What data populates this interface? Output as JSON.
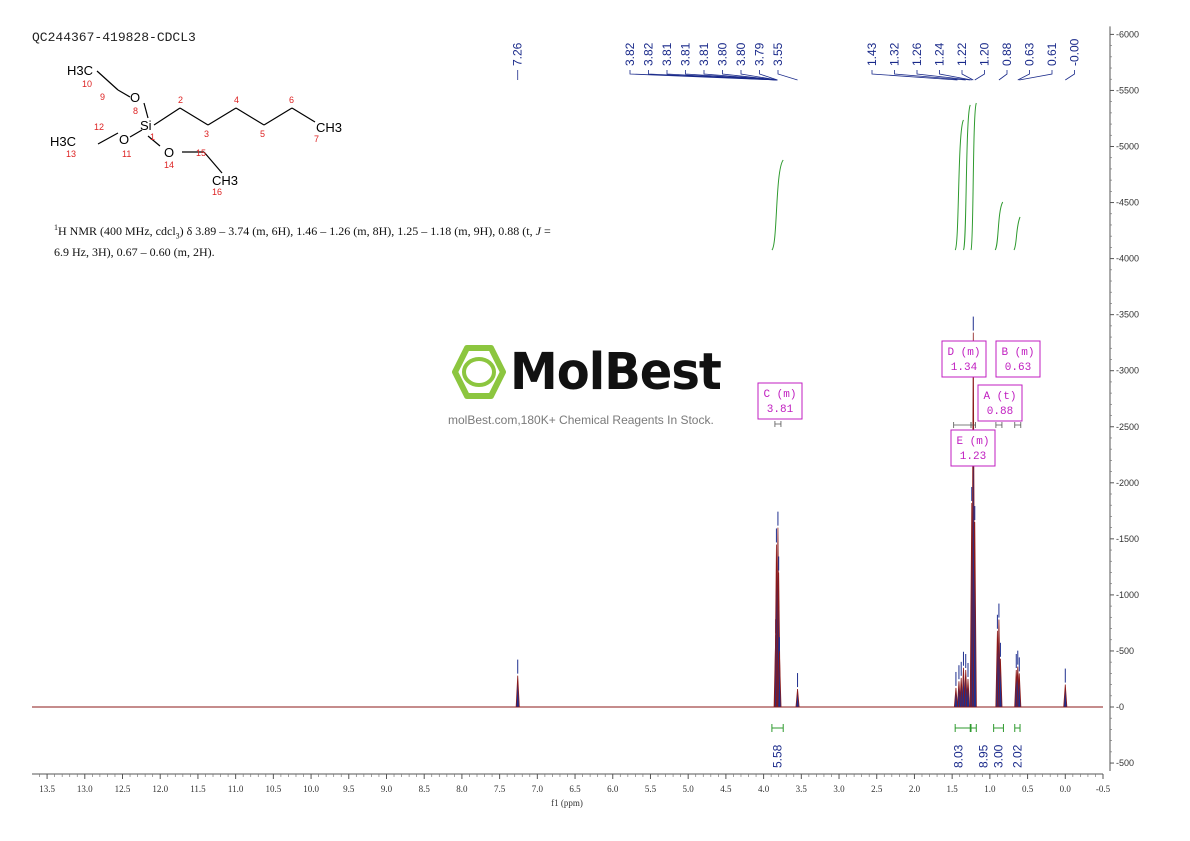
{
  "header": {
    "sample_id": "QC244367-419828-CDCL3",
    "nmr_summary": "H NMR (400 MHz, cdcl3) δ 3.89 – 3.74 (m, 6H), 1.46 – 1.26 (m, 8H), 1.25 – 1.18 (m, 9H), 0.88 (t, J = 6.9 Hz, 3H), 0.67 – 0.60 (m, 2H).",
    "nmr_prefix": "1",
    "nmr_text_line1": "H NMR (400 MHz, cdcl",
    "nmr_text_sub": "3",
    "nmr_text_line1b": ") δ 3.89 – 3.74 (m, 6H), 1.46 – 1.26 (m, 8H), 1.25 – 1.18 (m, 9H), 0.88 (t, ",
    "nmr_text_J": "J",
    "nmr_text_line1c": " =",
    "nmr_text_line2": "6.9 Hz, 3H), 0.67 – 0.60 (m, 2H)."
  },
  "molecule": {
    "labels": {
      "h3c_top": "H3C",
      "h3c_left": "H3C",
      "ch3_right": "CH3",
      "ch3_bottom": "CH3",
      "si": "Si",
      "o8": "O",
      "o11": "O",
      "o14": "O"
    },
    "atom_numbers": [
      "1",
      "2",
      "3",
      "4",
      "5",
      "6",
      "7",
      "8",
      "9",
      "10",
      "11",
      "12",
      "13",
      "14",
      "15",
      "16"
    ]
  },
  "watermark": {
    "brand": "MolBest",
    "tagline": "molBest.com,180K+ Chemical Reagents In Stock."
  },
  "colors": {
    "spectrum": "#8b1a1a",
    "spectrum_fill": "#1f2f8f",
    "integral": "#2e9a2e",
    "peak_label": "#1a2a8a",
    "multiplet_box": "#c01ec0",
    "logo_green": "#8cc63f"
  },
  "chart_data": {
    "type": "line",
    "title": "",
    "xlabel": "f1 (ppm)",
    "ylabel": "",
    "xlim": [
      13.7,
      -0.5
    ],
    "ylim": [
      -500,
      6000
    ],
    "x_ticks": [
      13.5,
      13.0,
      12.5,
      12.0,
      11.5,
      11.0,
      10.5,
      10.0,
      9.5,
      9.0,
      8.5,
      8.0,
      7.5,
      7.0,
      6.5,
      6.0,
      5.5,
      5.0,
      4.5,
      4.0,
      3.5,
      3.0,
      2.5,
      2.0,
      1.5,
      1.0,
      0.5,
      0.0,
      -0.5
    ],
    "x_tick_labels": [
      "13.5",
      "13.0",
      "12.5",
      "12.0",
      "11.5",
      "11.0",
      "10.5",
      "10.0",
      "9.5",
      "9.0",
      "8.5",
      "8.0",
      "7.5",
      "7.0",
      "6.5",
      "6.0",
      "5.5",
      "5.0",
      "4.5",
      "4.0",
      "3.5",
      "3.0",
      "2.5",
      "2.0",
      "1.5",
      "1.0",
      "0.5",
      "0.0",
      "-0.5"
    ],
    "y_ticks": [
      -500,
      0,
      500,
      1000,
      1500,
      2000,
      2500,
      3000,
      3500,
      4000,
      4500,
      5000,
      5500,
      6000
    ],
    "y_tick_labels": [
      "-500",
      "0",
      "500",
      "1000",
      "1500",
      "2000",
      "2500",
      "3000",
      "3500",
      "4000",
      "4500",
      "5000",
      "5500",
      "6000"
    ],
    "peaks": [
      {
        "ppm": 7.26,
        "intensity": 280
      },
      {
        "ppm": 3.84,
        "intensity": 640
      },
      {
        "ppm": 3.83,
        "intensity": 1450
      },
      {
        "ppm": 3.81,
        "intensity": 1600
      },
      {
        "ppm": 3.8,
        "intensity": 1200
      },
      {
        "ppm": 3.79,
        "intensity": 480
      },
      {
        "ppm": 3.55,
        "intensity": 160
      },
      {
        "ppm": 1.45,
        "intensity": 170
      },
      {
        "ppm": 1.41,
        "intensity": 230
      },
      {
        "ppm": 1.38,
        "intensity": 260
      },
      {
        "ppm": 1.35,
        "intensity": 350
      },
      {
        "ppm": 1.32,
        "intensity": 330
      },
      {
        "ppm": 1.29,
        "intensity": 250
      },
      {
        "ppm": 1.24,
        "intensity": 1820
      },
      {
        "ppm": 1.22,
        "intensity": 3340
      },
      {
        "ppm": 1.2,
        "intensity": 1650
      },
      {
        "ppm": 0.9,
        "intensity": 680
      },
      {
        "ppm": 0.88,
        "intensity": 780
      },
      {
        "ppm": 0.86,
        "intensity": 430
      },
      {
        "ppm": 0.65,
        "intensity": 330
      },
      {
        "ppm": 0.63,
        "intensity": 360
      },
      {
        "ppm": 0.61,
        "intensity": 300
      },
      {
        "ppm": 0.0,
        "intensity": 200
      }
    ],
    "peak_labels_group1": [
      "7.26"
    ],
    "peak_labels_group2": [
      "3.82",
      "3.82",
      "3.81",
      "3.81",
      "3.81",
      "3.80",
      "3.80",
      "3.79",
      "3.55"
    ],
    "peak_labels_group3": [
      "1.43",
      "1.32",
      "1.26",
      "1.24",
      "1.22",
      "1.20",
      "0.88",
      "0.63",
      "0.61",
      "-0.00"
    ],
    "integrals": [
      {
        "from": 3.89,
        "to": 3.74,
        "value": "5.58"
      },
      {
        "from": 1.46,
        "to": 1.26,
        "value": "8.03"
      },
      {
        "from": 1.25,
        "to": 1.18,
        "value": "8.95"
      },
      {
        "from": 0.95,
        "to": 0.82,
        "value": "3.00"
      },
      {
        "from": 0.67,
        "to": 0.6,
        "value": "2.02"
      }
    ],
    "multiplets": [
      {
        "name": "C (m)",
        "shift": "3.81"
      },
      {
        "name": "D (m)",
        "shift": "1.34"
      },
      {
        "name": "B (m)",
        "shift": "0.63"
      },
      {
        "name": "A (t)",
        "shift": "0.88"
      },
      {
        "name": "E (m)",
        "shift": "1.23"
      }
    ]
  }
}
